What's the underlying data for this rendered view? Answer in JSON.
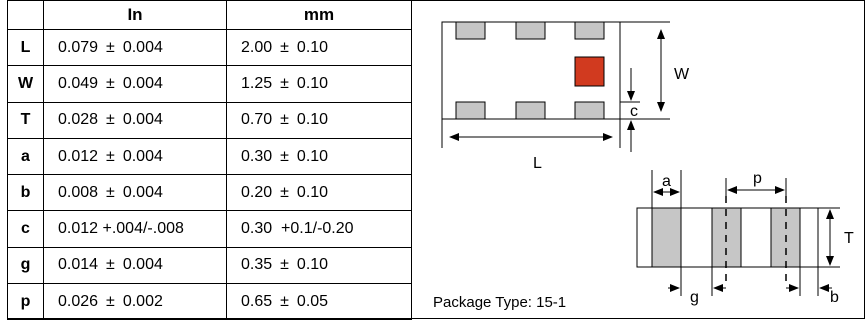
{
  "headers": {
    "inch": "In",
    "mm": "mm"
  },
  "rows": [
    {
      "sym": "L",
      "in_val": "0.079",
      "in_pm": "±",
      "in_tol": "0.004",
      "mm_val": "2.00",
      "mm_pm": "±",
      "mm_tol": "0.10"
    },
    {
      "sym": "W",
      "in_val": "0.049",
      "in_pm": "±",
      "in_tol": "0.004",
      "mm_val": "1.25",
      "mm_pm": "±",
      "mm_tol": "0.10"
    },
    {
      "sym": "T",
      "in_val": "0.028",
      "in_pm": "±",
      "in_tol": "0.004",
      "mm_val": "0.70",
      "mm_pm": "±",
      "mm_tol": "0.10"
    },
    {
      "sym": "a",
      "in_val": "0.012",
      "in_pm": "±",
      "in_tol": "0.004",
      "mm_val": "0.30",
      "mm_pm": "±",
      "mm_tol": "0.10"
    },
    {
      "sym": "b",
      "in_val": "0.008",
      "in_pm": "±",
      "in_tol": "0.004",
      "mm_val": "0.20",
      "mm_pm": "±",
      "mm_tol": "0.10"
    },
    {
      "sym": "c",
      "in_full": "0.012 +.004/-.008",
      "mm_full": "0.30  +0.1/-0.20"
    },
    {
      "sym": "g",
      "in_val": "0.014",
      "in_pm": "±",
      "in_tol": "0.004",
      "mm_val": "0.35",
      "mm_pm": "±",
      "mm_tol": "0.10"
    },
    {
      "sym": "p",
      "in_val": "0.026",
      "in_pm": "±",
      "in_tol": "0.002",
      "mm_val": "0.65",
      "mm_pm": "±",
      "mm_tol": "0.05"
    }
  ],
  "diagram": {
    "labels": {
      "W": "W",
      "L": "L",
      "c": "c",
      "a": "a",
      "p": "p",
      "T": "T",
      "g": "g",
      "b": "b"
    },
    "marker_color": "#d13a1f",
    "pad_color": "#c6c6c6"
  },
  "caption": "Package Type: 15-1"
}
